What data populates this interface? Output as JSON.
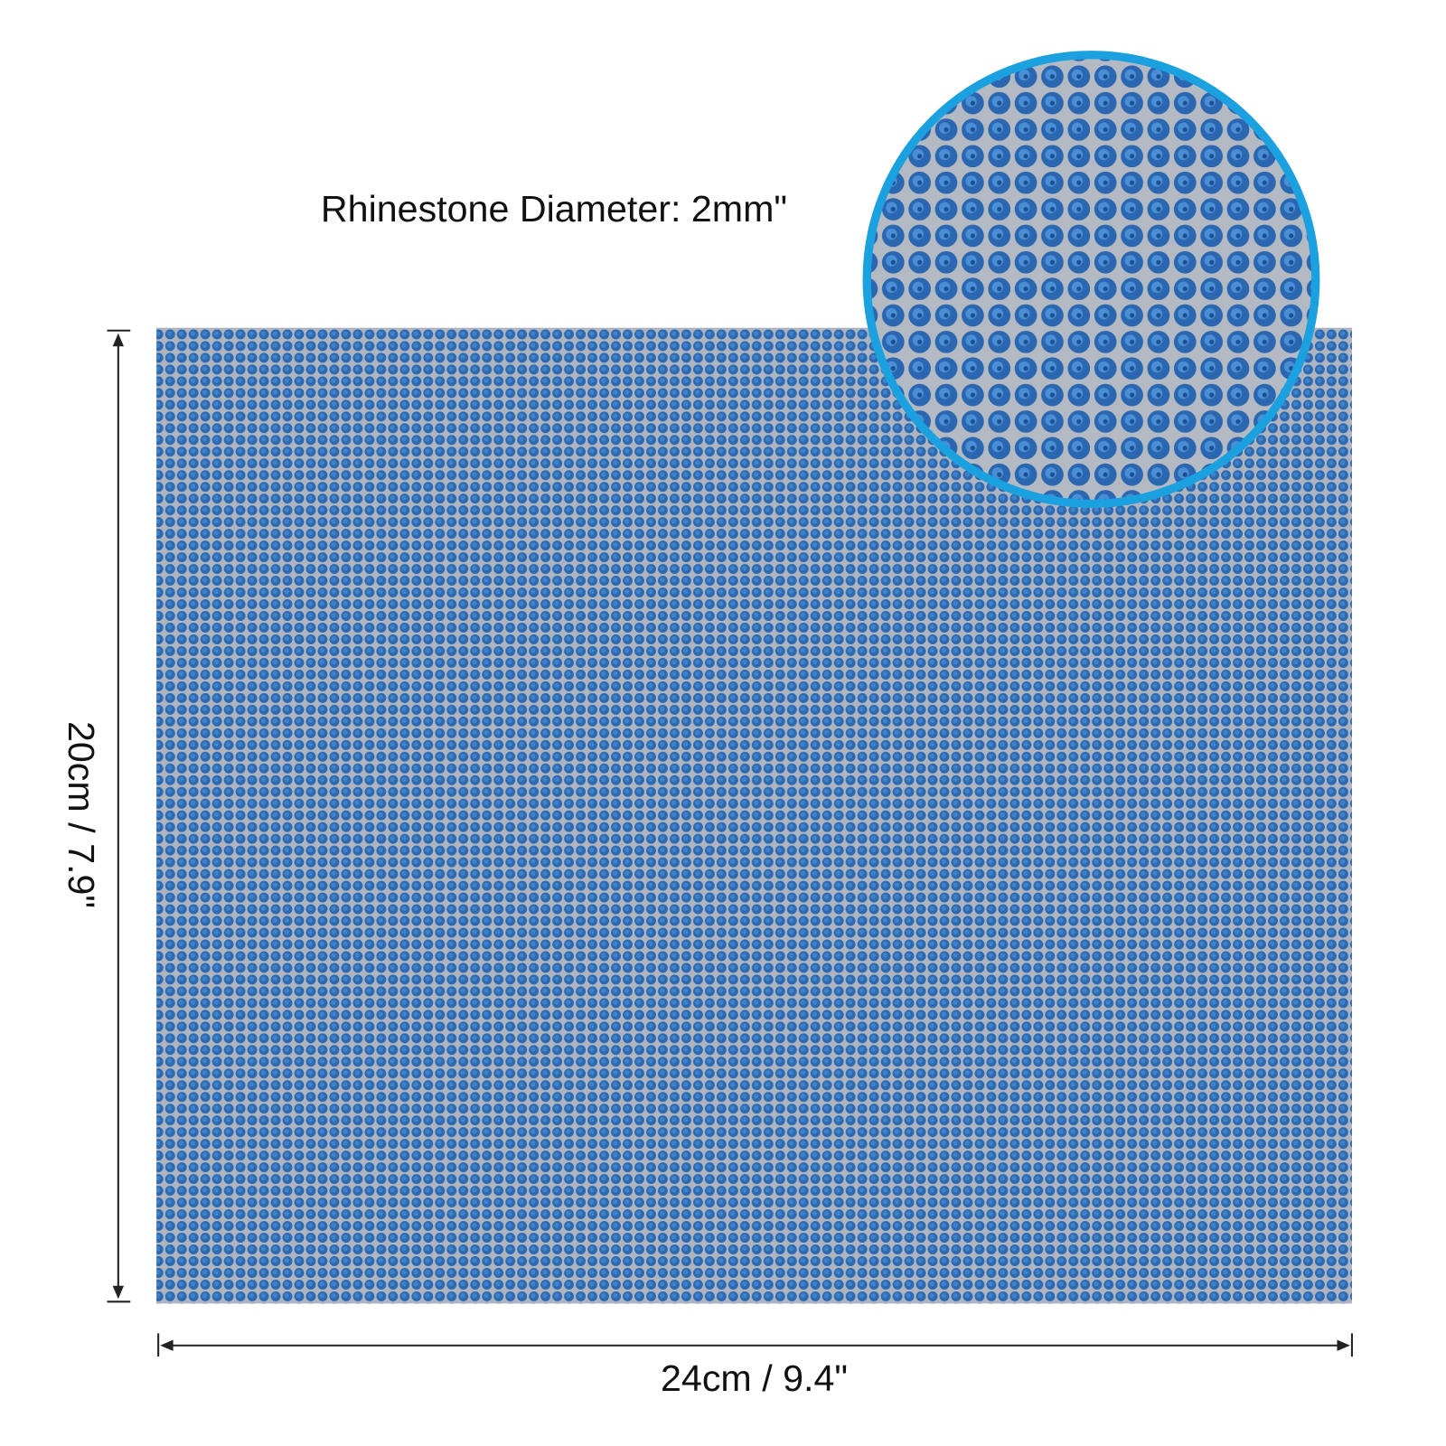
{
  "annotations": {
    "diameter": "Rhinestone Diameter: 2mm\"",
    "height": "20cm / 7.9\"",
    "width": "24cm / 9.4\""
  }
}
